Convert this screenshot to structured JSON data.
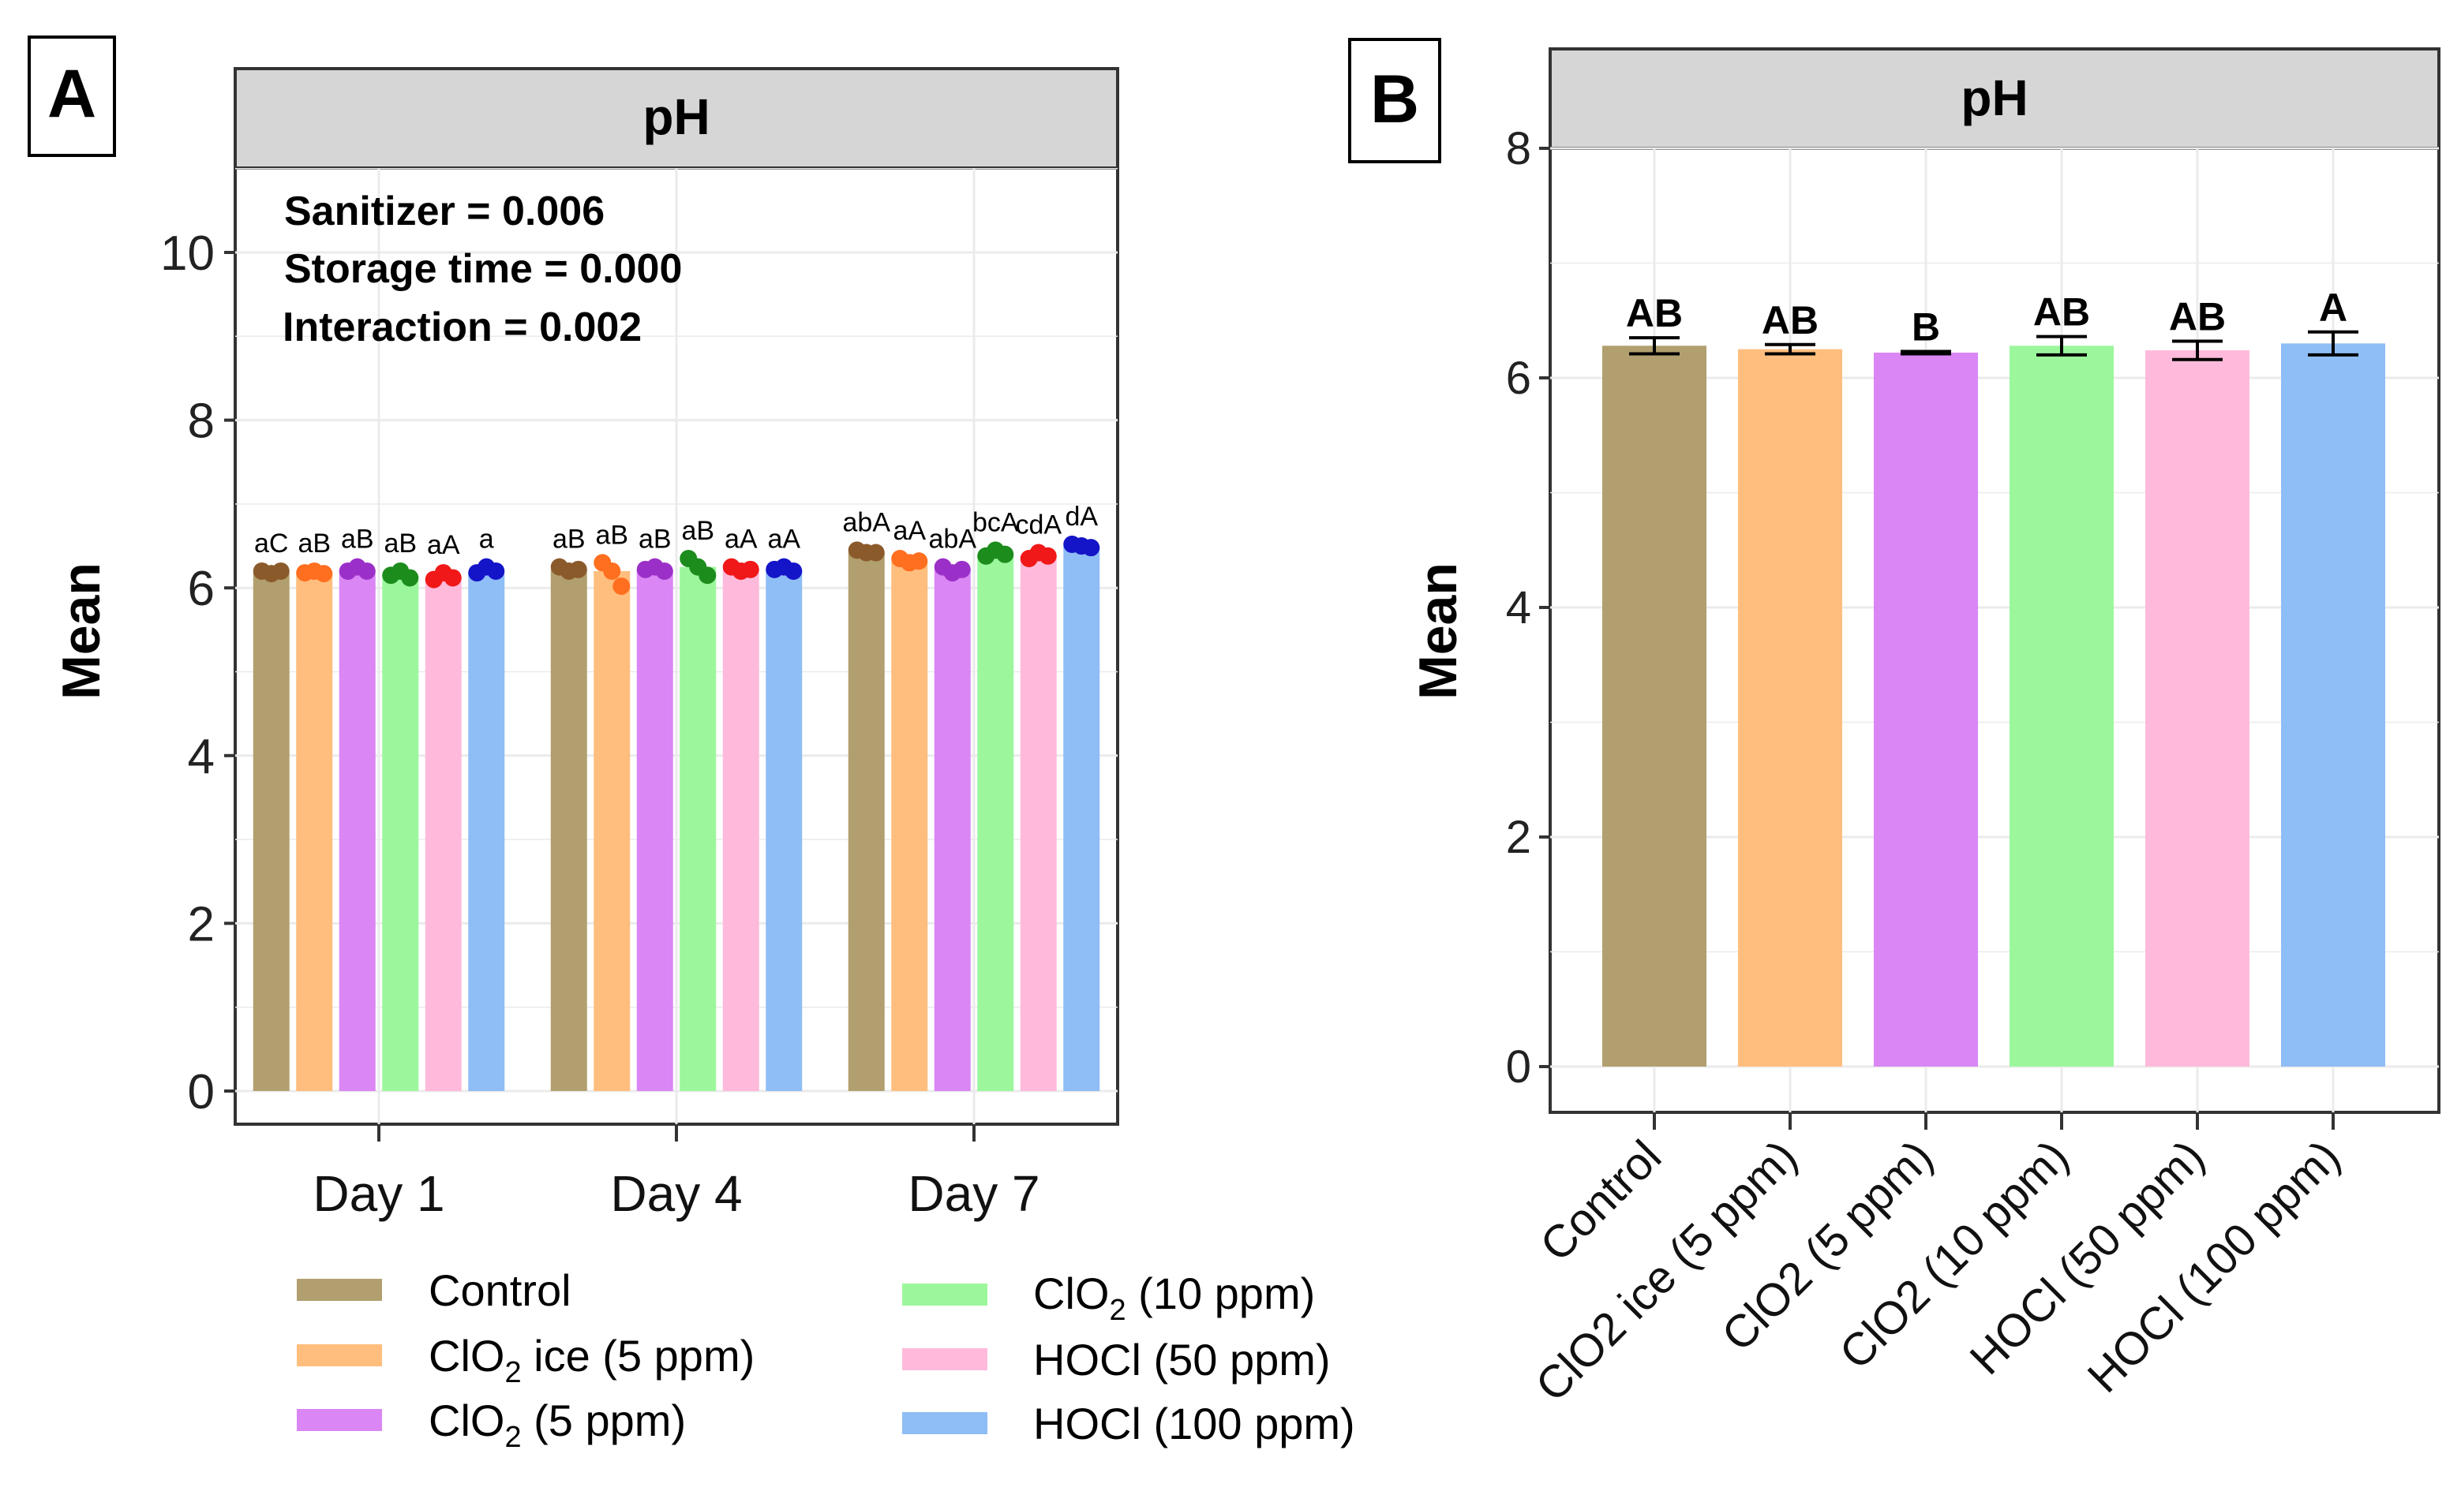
{
  "colors": {
    "control": "#B19F6F",
    "clo2_ice_5": "#FFBE7E",
    "clo2_5": "#DA86F5",
    "clo2_10": "#9CF79C",
    "hocl_50": "#FFBADB",
    "hocl_100": "#8FBDF5",
    "dot_control": "#8B5A2B",
    "dot_clo2_ice_5": "#FF6F1F",
    "dot_clo2_5": "#9B30C8",
    "dot_clo2_10": "#1C8C1C",
    "dot_hocl_50": "#F01818",
    "dot_hocl_100": "#1414C8",
    "strip": "#D6D6D6",
    "grid": "#EBEBEB"
  },
  "chart_data": [
    {
      "type": "bar",
      "panel_label": "A",
      "strip_title": "pH",
      "ylabel": "Mean",
      "xlabel": "",
      "ylim": [
        -0.4,
        11
      ],
      "yticks": [
        "0",
        "2",
        "4",
        "6",
        "8",
        "10"
      ],
      "categories": [
        "Day 1",
        "Day 4",
        "Day 7"
      ],
      "stats": [
        "Sanitizer = 0.006",
        "Storage time = 0.000",
        "Interaction = 0.002"
      ],
      "legend": {
        "position": "bottom",
        "entries": [
          {
            "text": "Control",
            "sub": "",
            "rest": ""
          },
          {
            "text": "ClO",
            "sub": "2",
            "rest": " ice (5 ppm)"
          },
          {
            "text": "ClO",
            "sub": "2",
            "rest": " (5 ppm)"
          },
          {
            "text": "ClO",
            "sub": "2",
            "rest": " (10 ppm)"
          },
          {
            "text": "HOCl (50 ppm)",
            "sub": "",
            "rest": ""
          },
          {
            "text": "HOCl (100 ppm)",
            "sub": "",
            "rest": ""
          }
        ]
      },
      "series": [
        {
          "name": "Control",
          "values": [
            6.18,
            6.22,
            6.42
          ],
          "labels": [
            "aC",
            "aB",
            "abA"
          ]
        },
        {
          "name": "ClO2 ice (5 ppm)",
          "values": [
            6.18,
            6.2,
            6.32
          ],
          "labels": [
            "aB",
            "aB",
            "aA"
          ]
        },
        {
          "name": "ClO2 (5 ppm)",
          "values": [
            6.2,
            6.22,
            6.22
          ],
          "labels": [
            "aB",
            "aB",
            "abA"
          ]
        },
        {
          "name": "ClO2 (10 ppm)",
          "values": [
            6.15,
            6.25,
            6.4
          ],
          "labels": [
            "aB",
            "aB",
            "bcA"
          ]
        },
        {
          "name": "HOCl (50 ppm)",
          "values": [
            6.12,
            6.22,
            6.38
          ],
          "labels": [
            "aA",
            "aA",
            "cdA"
          ]
        },
        {
          "name": "HOCl (100 ppm)",
          "values": [
            6.18,
            6.22,
            6.5
          ],
          "labels": [
            "a",
            "aA",
            "dA"
          ]
        }
      ],
      "points": [
        [
          [
            6.2,
            6.17,
            6.2
          ],
          [
            6.25,
            6.2,
            6.22
          ],
          [
            6.45,
            6.42,
            6.42
          ]
        ],
        [
          [
            6.18,
            6.2,
            6.17
          ],
          [
            6.3,
            6.2,
            6.02
          ],
          [
            6.35,
            6.3,
            6.32
          ]
        ],
        [
          [
            6.2,
            6.25,
            6.2
          ],
          [
            6.22,
            6.25,
            6.2
          ],
          [
            6.25,
            6.18,
            6.22
          ]
        ],
        [
          [
            6.15,
            6.2,
            6.12
          ],
          [
            6.35,
            6.25,
            6.15
          ],
          [
            6.38,
            6.45,
            6.4
          ]
        ],
        [
          [
            6.1,
            6.18,
            6.12
          ],
          [
            6.25,
            6.2,
            6.22
          ],
          [
            6.35,
            6.42,
            6.38
          ]
        ],
        [
          [
            6.18,
            6.25,
            6.2
          ],
          [
            6.22,
            6.25,
            6.2
          ],
          [
            6.52,
            6.5,
            6.48
          ]
        ]
      ]
    },
    {
      "type": "bar",
      "panel_label": "B",
      "strip_title": "pH",
      "ylabel": "Mean",
      "xlabel": "",
      "ylim": [
        -0.4,
        8
      ],
      "yticks": [
        "0",
        "2",
        "4",
        "6",
        "8"
      ],
      "categories": [
        "Control",
        "ClO2 ice (5 ppm)",
        "ClO2 (5 ppm)",
        "ClO2 (10 ppm)",
        "HOCl (50 ppm)",
        "HOCl (100 ppm)"
      ],
      "values": [
        6.28,
        6.25,
        6.22,
        6.28,
        6.24,
        6.3
      ],
      "errors": [
        0.07,
        0.04,
        0.01,
        0.08,
        0.08,
        0.1
      ],
      "labels": [
        "AB",
        "AB",
        "B",
        "AB",
        "AB",
        "A"
      ]
    }
  ]
}
